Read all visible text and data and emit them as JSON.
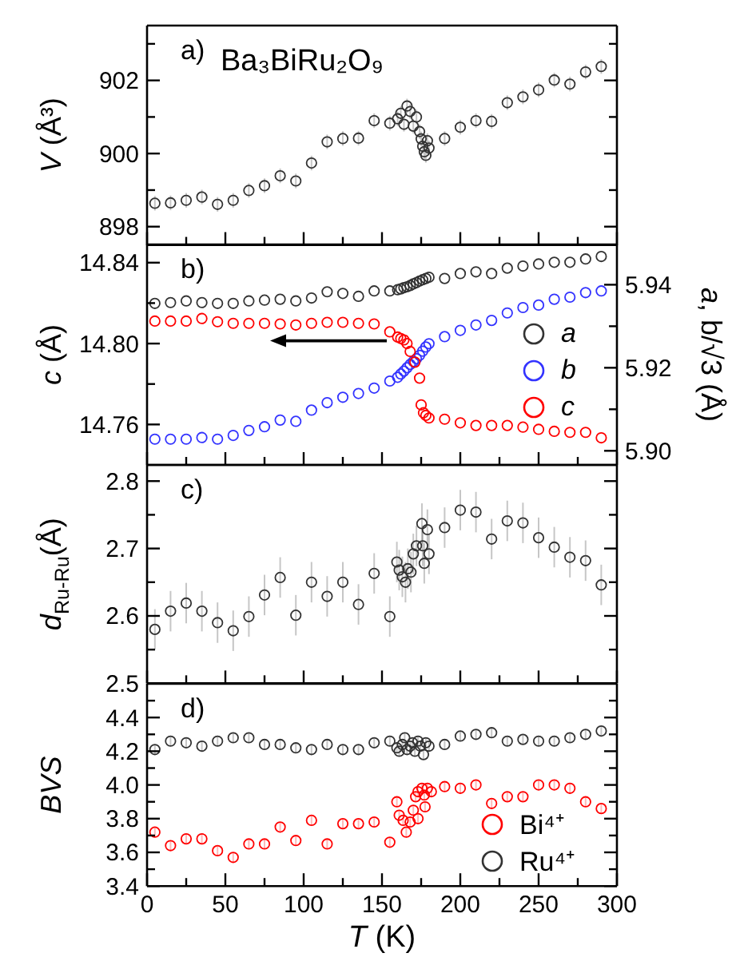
{
  "chart_data": [
    {
      "type": "scatter",
      "title": "a)",
      "annotations": [
        "Ba₃BiRu₂O₉"
      ],
      "ylabel": "V (Å³)",
      "marker": "circle",
      "tick_labels": "y",
      "x": [
        5,
        15,
        25,
        35,
        45,
        55,
        65,
        75,
        85,
        95,
        105,
        115,
        125,
        135,
        145,
        155,
        160,
        162,
        164,
        166,
        168,
        170,
        172,
        174,
        175,
        176,
        177,
        178,
        179,
        180,
        190,
        200,
        210,
        220,
        230,
        240,
        250,
        260,
        270,
        280,
        290
      ],
      "series": [
        {
          "color": "#333333",
          "values": [
            898.64,
            898.65,
            898.72,
            898.81,
            898.61,
            898.72,
            898.99,
            899.12,
            899.39,
            899.25,
            899.74,
            900.32,
            900.41,
            900.42,
            900.9,
            900.83,
            900.95,
            901.1,
            900.8,
            901.3,
            901.15,
            900.75,
            901.0,
            900.6,
            900.4,
            900.2,
            900.05,
            899.95,
            900.35,
            900.15,
            900.41,
            900.72,
            900.9,
            900.88,
            901.39,
            901.55,
            901.74,
            902.01,
            901.9,
            902.23,
            902.38
          ],
          "errors": [
            0.2,
            0.2,
            0.2,
            0.2,
            0.2,
            0.2,
            0.2,
            0.2,
            0.2,
            0.2,
            0.2,
            0.2,
            0.2,
            0.2,
            0.2,
            0.2,
            0.2,
            0.2,
            0.2,
            0.2,
            0.2,
            0.2,
            0.2,
            0.2,
            0.2,
            0.2,
            0.2,
            0.2,
            0.2,
            0.2,
            0.2,
            0.2,
            0.2,
            0.2,
            0.2,
            0.2,
            0.2,
            0.2,
            0.2,
            0.2,
            0.2
          ]
        }
      ],
      "xlim": [
        0,
        300
      ],
      "xticks": [
        0,
        {
          "value": 25,
          "label": null
        },
        50,
        {
          "value": 75,
          "label": null
        },
        100,
        {
          "value": 125,
          "label": null
        },
        150,
        {
          "value": 175,
          "label": null
        },
        200,
        {
          "value": 225,
          "label": null
        },
        250,
        {
          "value": 275,
          "label": null
        },
        300
      ],
      "ylim": [
        897.5,
        903.5
      ],
      "yticks": [
        898,
        {
          "value": 899,
          "label": null
        },
        900,
        {
          "value": 901,
          "label": null
        },
        902,
        {
          "value": 903,
          "label": null
        }
      ]
    },
    {
      "type": "scatter",
      "title": "b)",
      "ylabel": "c (Å)",
      "y2label": "a, b/√3 (Å)",
      "marker": "circle",
      "tick_labels": "y",
      "legend": "right",
      "series": [
        {
          "name": "a",
          "color": "#333333",
          "axis": "y2",
          "x": [
            5,
            15,
            25,
            35,
            45,
            55,
            65,
            75,
            85,
            95,
            105,
            115,
            125,
            135,
            145,
            155,
            160,
            162,
            164,
            166,
            168,
            170,
            172,
            174,
            176,
            178,
            180,
            190,
            200,
            210,
            220,
            230,
            240,
            250,
            260,
            270,
            280,
            290
          ],
          "values": [
            5.9355,
            5.9357,
            5.9361,
            5.9357,
            5.9355,
            5.9355,
            5.9361,
            5.9363,
            5.9365,
            5.9361,
            5.9368,
            5.9383,
            5.9379,
            5.9372,
            5.9385,
            5.9385,
            5.9388,
            5.939,
            5.9393,
            5.9395,
            5.9398,
            5.9402,
            5.9405,
            5.9409,
            5.9412,
            5.9415,
            5.9418,
            5.9415,
            5.9427,
            5.9431,
            5.9427,
            5.944,
            5.9445,
            5.945,
            5.9454,
            5.9454,
            5.9462,
            5.9468
          ]
        },
        {
          "name": "b",
          "color": "#3333ff",
          "axis": "y2",
          "x": [
            5,
            15,
            25,
            35,
            45,
            55,
            65,
            75,
            85,
            95,
            105,
            115,
            125,
            135,
            145,
            155,
            160,
            162,
            164,
            166,
            168,
            170,
            172,
            174,
            176,
            178,
            180,
            190,
            200,
            210,
            220,
            230,
            240,
            250,
            260,
            270,
            280,
            290
          ],
          "values": [
            5.9028,
            5.9028,
            5.9028,
            5.9032,
            5.9028,
            5.9037,
            5.9049,
            5.9058,
            5.9074,
            5.9071,
            5.9098,
            5.9116,
            5.9129,
            5.9138,
            5.9151,
            5.9168,
            5.9177,
            5.9185,
            5.9192,
            5.92,
            5.9208,
            5.9215,
            5.9222,
            5.923,
            5.924,
            5.925,
            5.9258,
            5.9275,
            5.929,
            5.9303,
            5.9314,
            5.9332,
            5.9345,
            5.9351,
            5.9365,
            5.937,
            5.9381,
            5.9385
          ]
        },
        {
          "name": "c",
          "color": "#ff0000",
          "x": [
            5,
            15,
            25,
            35,
            45,
            55,
            65,
            75,
            85,
            95,
            105,
            115,
            125,
            135,
            145,
            155,
            160,
            162,
            164,
            166,
            168,
            171,
            174,
            175,
            176.5,
            178,
            180,
            190,
            200,
            210,
            220,
            230,
            240,
            250,
            260,
            270,
            280,
            290
          ],
          "values": [
            14.8111,
            14.8111,
            14.8111,
            14.8124,
            14.8108,
            14.81,
            14.81,
            14.81,
            14.8097,
            14.8092,
            14.81,
            14.8105,
            14.8105,
            14.81,
            14.8097,
            14.8058,
            14.8032,
            14.8025,
            14.8018,
            14.8,
            14.7961,
            14.7908,
            14.7829,
            14.7697,
            14.7658,
            14.7645,
            14.7632,
            14.7626,
            14.7608,
            14.7595,
            14.7595,
            14.7595,
            14.7587,
            14.7576,
            14.7566,
            14.7561,
            14.7561,
            14.7534
          ]
        }
      ],
      "xlim": [
        0,
        300
      ],
      "xticks": [
        0,
        {
          "value": 25,
          "label": null
        },
        50,
        {
          "value": 75,
          "label": null
        },
        100,
        {
          "value": 125,
          "label": null
        },
        150,
        {
          "value": 175,
          "label": null
        },
        200,
        {
          "value": 225,
          "label": null
        },
        250,
        {
          "value": 275,
          "label": null
        },
        300
      ],
      "ylim": [
        14.74,
        14.849
      ],
      "yticks": [
        14.76,
        {
          "value": 14.78,
          "label": null
        },
        {
          "value": 14.8,
          "label": "14.80"
        },
        {
          "value": 14.82,
          "label": null
        },
        14.84
      ],
      "y2lim": [
        5.8966,
        5.9497
      ],
      "y2ticks": [
        {
          "value": 5.9,
          "label": "5.90"
        },
        {
          "value": 5.91,
          "label": null
        },
        5.92,
        {
          "value": 5.93,
          "label": null
        },
        5.94
      ]
    },
    {
      "type": "scatter",
      "title": "c)",
      "ylabel": "d$_{Ru-Ru}$(Å)",
      "marker": "circle",
      "tick_labels": "y",
      "x": [
        5,
        15,
        25,
        35,
        45,
        55,
        65,
        75,
        85,
        95,
        105,
        115,
        125,
        135,
        145,
        155,
        159.5,
        161,
        163,
        165,
        166.5,
        168.5,
        170,
        172,
        175.5,
        176,
        177,
        179,
        180,
        190,
        200,
        210,
        220,
        230,
        240,
        250,
        260,
        270,
        280,
        290
      ],
      "series": [
        {
          "color": "#333333",
          "values": [
            2.58,
            2.607,
            2.619,
            2.607,
            2.59,
            2.578,
            2.599,
            2.631,
            2.657,
            2.601,
            2.65,
            2.629,
            2.65,
            2.617,
            2.663,
            2.599,
            2.68,
            2.668,
            2.658,
            2.65,
            2.67,
            2.665,
            2.692,
            2.704,
            2.737,
            2.704,
            2.678,
            2.728,
            2.692,
            2.731,
            2.757,
            2.754,
            2.714,
            2.741,
            2.738,
            2.716,
            2.702,
            2.687,
            2.682,
            2.646
          ],
          "errors": [
            0.03,
            0.03,
            0.03,
            0.03,
            0.03,
            0.03,
            0.03,
            0.03,
            0.03,
            0.03,
            0.03,
            0.03,
            0.03,
            0.03,
            0.03,
            0.03,
            0.03,
            0.03,
            0.03,
            0.03,
            0.03,
            0.03,
            0.03,
            0.03,
            0.03,
            0.03,
            0.03,
            0.03,
            0.03,
            0.03,
            0.03,
            0.03,
            0.03,
            0.03,
            0.03,
            0.03,
            0.03,
            0.03,
            0.03,
            0.03
          ]
        }
      ],
      "xlim": [
        0,
        300
      ],
      "xticks": [
        0,
        {
          "value": 25,
          "label": null
        },
        50,
        {
          "value": 75,
          "label": null
        },
        100,
        {
          "value": 125,
          "label": null
        },
        150,
        {
          "value": 175,
          "label": null
        },
        200,
        {
          "value": 225,
          "label": null
        },
        250,
        {
          "value": 275,
          "label": null
        },
        300
      ],
      "ylim": [
        2.5,
        2.824
      ],
      "yticks": [
        2.5,
        {
          "value": 2.55,
          "label": null
        },
        2.6,
        {
          "value": 2.65,
          "label": null
        },
        2.7,
        {
          "value": 2.75,
          "label": null
        },
        2.8
      ]
    },
    {
      "type": "scatter",
      "title": "d)",
      "ylabel": "BVS",
      "xlabel": "T (K)",
      "marker": "circle",
      "legend": "bottom right",
      "series": [
        {
          "name": "Bi⁴⁺",
          "color": "#ff0000",
          "x": [
            5,
            15,
            25,
            35,
            45,
            55,
            65,
            75,
            85,
            95,
            105,
            115,
            125,
            135,
            145,
            155,
            159.5,
            161,
            163.5,
            165.5,
            168,
            170,
            171.5,
            173,
            173,
            175.5,
            177,
            177.5,
            179,
            181.5,
            190,
            200,
            210,
            220,
            230,
            240,
            250,
            260,
            270,
            280,
            290
          ],
          "values": [
            3.72,
            3.64,
            3.68,
            3.68,
            3.61,
            3.57,
            3.65,
            3.65,
            3.75,
            3.67,
            3.79,
            3.65,
            3.77,
            3.77,
            3.78,
            3.66,
            3.9,
            3.82,
            3.79,
            3.72,
            3.78,
            3.85,
            3.93,
            3.8,
            3.96,
            3.98,
            3.94,
            3.87,
            3.98,
            3.96,
            3.99,
            3.98,
            4.0,
            3.89,
            3.93,
            3.93,
            4.0,
            4.0,
            3.98,
            3.9,
            3.86
          ],
          "errors": [
            0.03,
            0.03,
            0.03,
            0.03,
            0.03,
            0.03,
            0.03,
            0.03,
            0.03,
            0.03,
            0.03,
            0.03,
            0.03,
            0.03,
            0.03,
            0.03,
            0.03,
            0.03,
            0.03,
            0.03,
            0.03,
            0.03,
            0.03,
            0.03,
            0.03,
            0.03,
            0.03,
            0.03,
            0.03,
            0.03,
            0.03,
            0.03,
            0.03,
            0.03,
            0.03,
            0.03,
            0.03,
            0.03,
            0.03,
            0.03,
            0.03
          ]
        },
        {
          "name": "Ru⁴⁺",
          "color": "#333333",
          "x": [
            5,
            15,
            25,
            35,
            45,
            55,
            65,
            75,
            85,
            95,
            105,
            115,
            125,
            135,
            145,
            155,
            159.5,
            161,
            163,
            164.5,
            166,
            168,
            169.5,
            171,
            173,
            174.5,
            176.5,
            178,
            180,
            190,
            200,
            210,
            220,
            230,
            240,
            250,
            260,
            270,
            280,
            290
          ],
          "values": [
            4.21,
            4.26,
            4.25,
            4.23,
            4.26,
            4.28,
            4.28,
            4.24,
            4.24,
            4.22,
            4.21,
            4.24,
            4.21,
            4.21,
            4.25,
            4.26,
            4.22,
            4.2,
            4.24,
            4.28,
            4.21,
            4.23,
            4.25,
            4.2,
            4.26,
            4.23,
            4.18,
            4.25,
            4.23,
            4.24,
            4.29,
            4.3,
            4.31,
            4.26,
            4.27,
            4.26,
            4.26,
            4.28,
            4.3,
            4.32
          ],
          "errors": [
            0.03,
            0.03,
            0.03,
            0.03,
            0.03,
            0.03,
            0.03,
            0.03,
            0.03,
            0.03,
            0.03,
            0.03,
            0.03,
            0.03,
            0.03,
            0.03,
            0.03,
            0.03,
            0.03,
            0.03,
            0.03,
            0.03,
            0.03,
            0.03,
            0.03,
            0.03,
            0.03,
            0.03,
            0.03,
            0.03,
            0.03,
            0.03,
            0.03,
            0.03,
            0.03,
            0.03,
            0.03,
            0.03,
            0.03,
            0.03
          ]
        }
      ],
      "xlim": [
        0,
        300
      ],
      "xticks": [
        0,
        {
          "value": 25,
          "label": null
        },
        50,
        {
          "value": 75,
          "label": null
        },
        100,
        {
          "value": 125,
          "label": null
        },
        150,
        {
          "value": 175,
          "label": null
        },
        200,
        {
          "value": 225,
          "label": null
        },
        250,
        {
          "value": 275,
          "label": null
        },
        300
      ],
      "ylim": [
        3.4,
        4.6
      ],
      "yticks": [
        3.4,
        {
          "value": 3.5,
          "label": null
        },
        3.6,
        {
          "value": 3.7,
          "label": null
        },
        3.8,
        {
          "value": 3.9,
          "label": null
        },
        {
          "value": 4,
          "label": "4.0"
        },
        {
          "value": 4.1,
          "label": null
        },
        4.2,
        {
          "value": 4.3,
          "label": null
        },
        4.4,
        {
          "value": 4.5,
          "label": null
        }
      ]
    }
  ]
}
